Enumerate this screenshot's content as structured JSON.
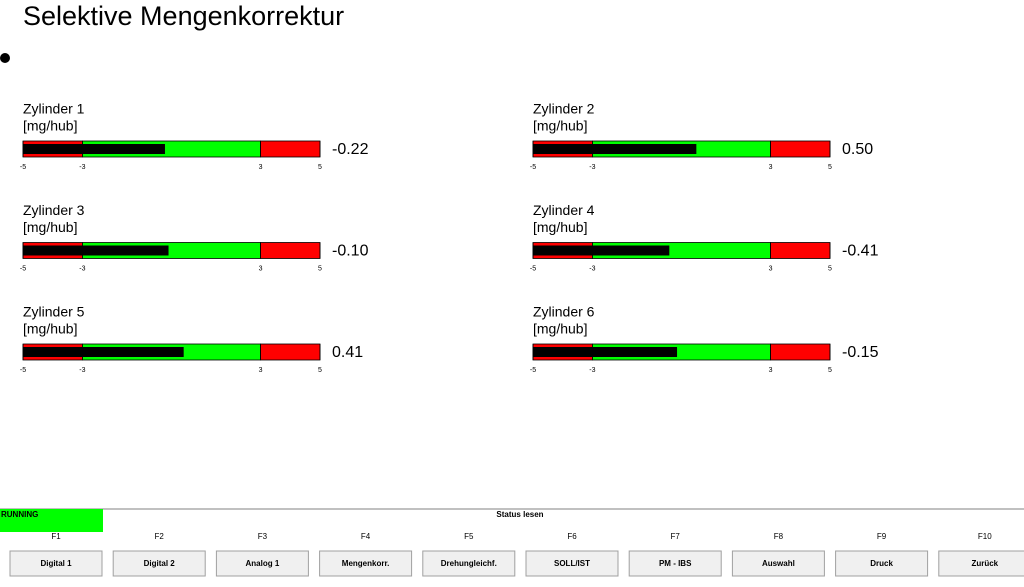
{
  "header": {
    "title": "Selektive Mengenkorrektur"
  },
  "scale": {
    "lim": [
      -5,
      5
    ],
    "ticks": [
      -5,
      -3,
      3,
      5
    ],
    "zones": [
      {
        "from": -5,
        "to": -3,
        "color": "#ff0000"
      },
      {
        "from": -3,
        "to": 3,
        "color": "#00ff00"
      },
      {
        "from": 3,
        "to": 5,
        "color": "#ff0000"
      }
    ],
    "bar_color": "#000000"
  },
  "gauges": [
    {
      "label": "Zylinder 1",
      "unit": "[mg/hub]",
      "value": -0.22
    },
    {
      "label": "Zylinder 2",
      "unit": "[mg/hub]",
      "value": 0.5,
      "value_label": "0.50"
    },
    {
      "label": "Zylinder 3",
      "unit": "[mg/hub]",
      "value": -0.1,
      "value_label": "-0.10"
    },
    {
      "label": "Zylinder 4",
      "unit": "[mg/hub]",
      "value": -0.41
    },
    {
      "label": "Zylinder 5",
      "unit": "[mg/hub]",
      "value": 0.41
    },
    {
      "label": "Zylinder 6",
      "unit": "[mg/hub]",
      "value": -0.15
    }
  ],
  "footer": {
    "state": "RUNNING",
    "status": "Status lesen",
    "keys": [
      {
        "key": "F1",
        "label": "Digital 1"
      },
      {
        "key": "F2",
        "label": "Digital 2"
      },
      {
        "key": "F3",
        "label": "Analog 1"
      },
      {
        "key": "F4",
        "label": "Mengenkorr."
      },
      {
        "key": "F5",
        "label": "Drehungleichf."
      },
      {
        "key": "F6",
        "label": "SOLL/IST"
      },
      {
        "key": "F7",
        "label": "PM - IBS"
      },
      {
        "key": "F8",
        "label": "Auswahl"
      },
      {
        "key": "F9",
        "label": "Druck"
      },
      {
        "key": "F10",
        "label": "Zurück"
      }
    ]
  }
}
